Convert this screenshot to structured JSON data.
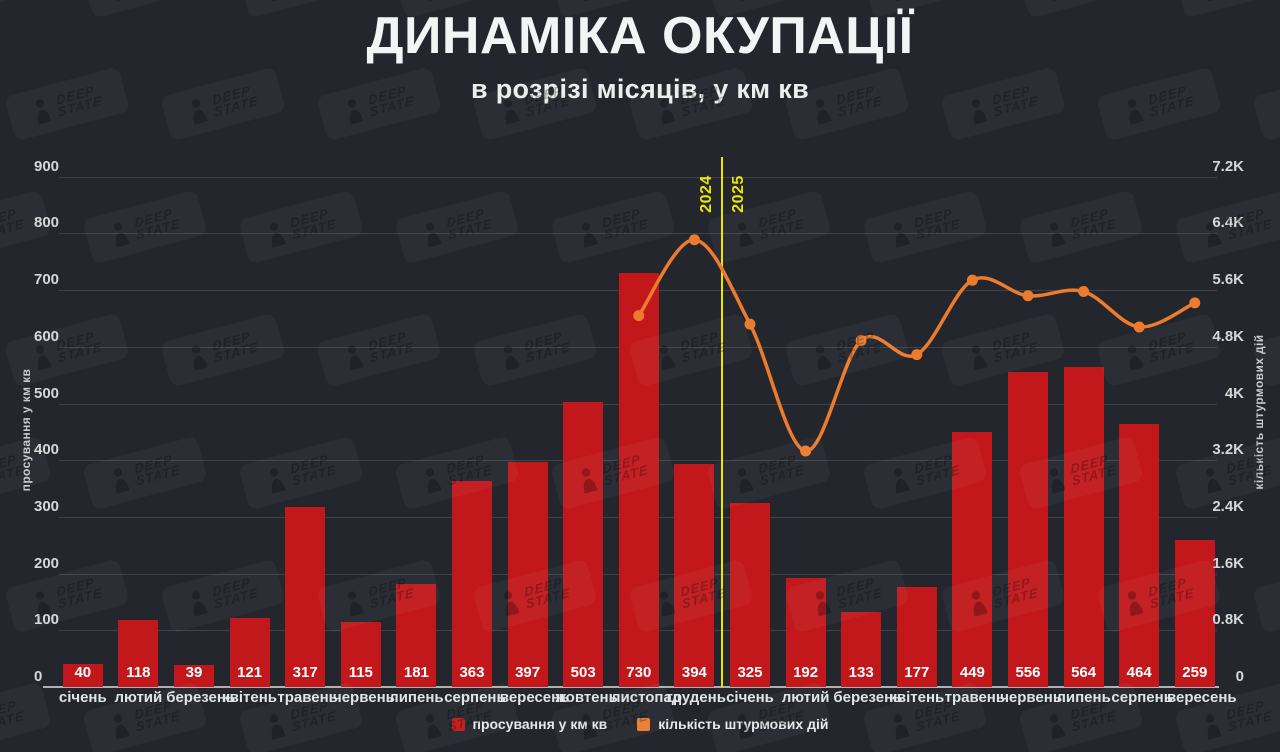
{
  "title": "ДИНАМІКА ОКУПАЦІЇ",
  "subtitle": "в розрізі місяців, у км кв",
  "watermark": {
    "brand_line1": "DEEP",
    "brand_line2": "STATE"
  },
  "legend": {
    "items": [
      {
        "label": "просування у км кв",
        "color": "#c2181c"
      },
      {
        "label": "кількість штурмових дій",
        "color": "#ec7b2d"
      }
    ]
  },
  "chart_data": {
    "type": "bar+line",
    "categories": [
      "січень",
      "лютий",
      "березень",
      "квітень",
      "травень",
      "червень",
      "липень",
      "серпень",
      "вересень",
      "жовтень",
      "листопад",
      "грудень",
      "січень",
      "лютий",
      "березень",
      "квітень",
      "травень",
      "червень",
      "липень",
      "серпень",
      "вересень"
    ],
    "series": [
      {
        "name": "просування у км кв",
        "type": "bar",
        "axis": "left",
        "color": "#c2181c",
        "values": [
          40,
          118,
          39,
          121,
          317,
          115,
          181,
          363,
          397,
          503,
          730,
          394,
          325,
          192,
          133,
          177,
          449,
          556,
          564,
          464,
          259
        ]
      },
      {
        "name": "кількість штурмових дій",
        "type": "line",
        "axis": "right",
        "color": "#ec7b2d",
        "values": [
          null,
          null,
          null,
          null,
          null,
          null,
          null,
          null,
          null,
          null,
          5240,
          6310,
          5120,
          3330,
          4890,
          4690,
          5740,
          5520,
          5580,
          5080,
          5420
        ]
      }
    ],
    "left_axis": {
      "title": "просування у км кв",
      "min": 0,
      "max": 900,
      "tick_step": 100,
      "tick_labels": [
        "0",
        "100",
        "200",
        "300",
        "400",
        "500",
        "600",
        "700",
        "800",
        "900"
      ]
    },
    "right_axis": {
      "title": "кількість штурмових дій",
      "min": 0,
      "max": 7200,
      "tick_step": 800,
      "tick_labels": [
        "0",
        "0.8K",
        "1.6K",
        "2.4K",
        "3.2K",
        "4K",
        "4.8K",
        "5.6K",
        "6.4K",
        "7.2K"
      ]
    },
    "year_divider": {
      "between_categories": [
        11,
        12
      ],
      "labels": [
        "2024",
        "2025"
      ],
      "color": "#ece306"
    },
    "grid": true,
    "legend_position": "bottom"
  }
}
